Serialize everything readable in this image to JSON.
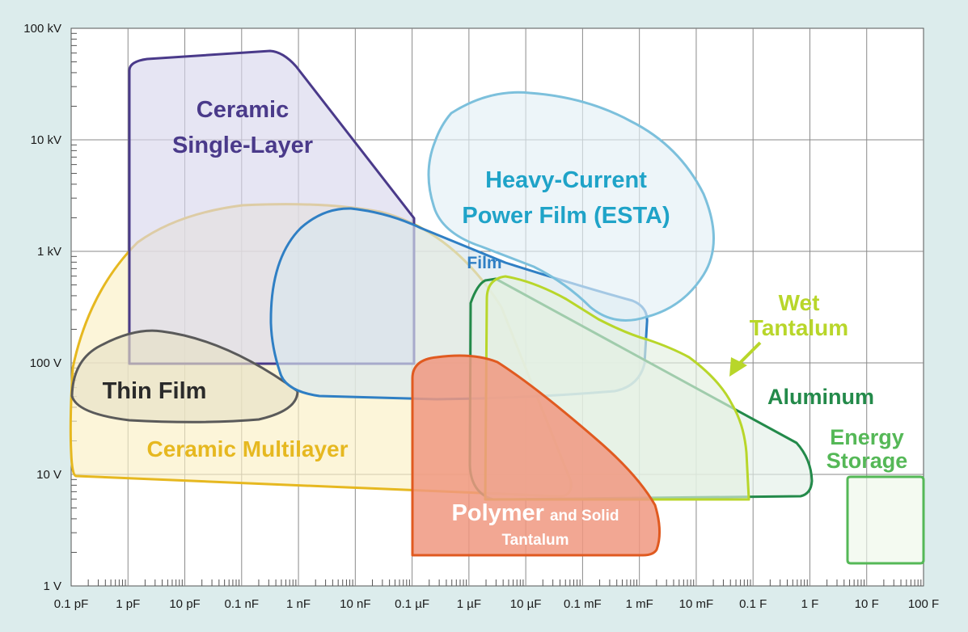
{
  "chart_data": {
    "type": "area",
    "title": "",
    "xlabel": "",
    "ylabel": "",
    "x_scale": "log",
    "y_scale": "log",
    "xlim": [
      "0.1 pF",
      "100 F"
    ],
    "ylim": [
      "1 V",
      "100 kV"
    ],
    "grid": true,
    "x_ticks": [
      "0.1 pF",
      "1 pF",
      "10 pF",
      "0.1 nF",
      "1 nF",
      "10 nF",
      "0.1 µF",
      "1 µF",
      "10 µF",
      "0.1 mF",
      "1 mF",
      "10 mF",
      "0.1 F",
      "1 F",
      "10 F",
      "100 F"
    ],
    "y_ticks": [
      "1 V",
      "10 V",
      "100 V",
      "1 kV",
      "10 kV",
      "100 kV"
    ],
    "regions": [
      {
        "name": "Ceramic Single-Layer",
        "label_lines": [
          "Ceramic",
          "Single-Layer"
        ],
        "color": "#4a3a8a",
        "fill": "#d9d7ec",
        "capacitance": [
          "1 pF",
          "0.1 µF"
        ],
        "voltage": [
          "100 V",
          "60 kV"
        ]
      },
      {
        "name": "Ceramic Multilayer",
        "label_lines": [
          "Ceramic Multilayer"
        ],
        "color": "#e6b820",
        "fill": "#fbefc4",
        "capacitance": [
          "0.1 pF",
          "10 µF"
        ],
        "voltage": [
          "6 V",
          "2.7 kV"
        ]
      },
      {
        "name": "Thin Film",
        "label_lines": [
          "Thin Film"
        ],
        "color": "#5a5a5a",
        "fill": "#e7e0c6",
        "capacitance": [
          "0.1 pF",
          "1 nF"
        ],
        "voltage": [
          "30 V",
          "200 V"
        ]
      },
      {
        "name": "Film",
        "label_lines": [
          "Film"
        ],
        "color": "#2f7fc4",
        "fill": "#d9e6ee",
        "capacitance": [
          "1 nF",
          "1 mF"
        ],
        "voltage": [
          "50 V",
          "2.4 kV"
        ]
      },
      {
        "name": "Heavy-Current Power Film (ESTA)",
        "label_lines": [
          "Heavy-Current",
          "Power Film (ESTA)"
        ],
        "color": "#7cc0dc",
        "fill": "#e4f0f6",
        "capacitance": [
          "1 µF",
          "10 mF"
        ],
        "voltage": [
          "250 V",
          "25 kV"
        ]
      },
      {
        "name": "Aluminum",
        "label_lines": [
          "Aluminum"
        ],
        "color": "#238a4a",
        "fill": "#e4efe8",
        "capacitance": [
          "1 µF",
          "1 F"
        ],
        "voltage": [
          "6 V",
          "600 V"
        ]
      },
      {
        "name": "Wet Tantalum",
        "label_lines": [
          "Wet",
          "Tantalum"
        ],
        "color": "#b8d62a",
        "fill": "#e4efe0",
        "capacitance": [
          "1 µF",
          "0.1 F"
        ],
        "voltage": [
          "6 V",
          "550 V"
        ]
      },
      {
        "name": "Polymer and Solid Tantalum",
        "label_main": "Polymer",
        "label_suffix": "and Solid",
        "label_line2": "Tantalum",
        "color": "#e05a20",
        "fill": "#f09880",
        "capacitance": [
          "0.1 µF",
          "1 mF"
        ],
        "voltage": [
          "2 V",
          "110 V"
        ]
      },
      {
        "name": "Energy Storage",
        "label_lines": [
          "Energy",
          "Storage"
        ],
        "color": "#55b857",
        "fill": "#eef8ea",
        "capacitance": [
          "10 F",
          "100 F"
        ],
        "voltage": [
          "2 V",
          "10 V"
        ]
      }
    ]
  }
}
